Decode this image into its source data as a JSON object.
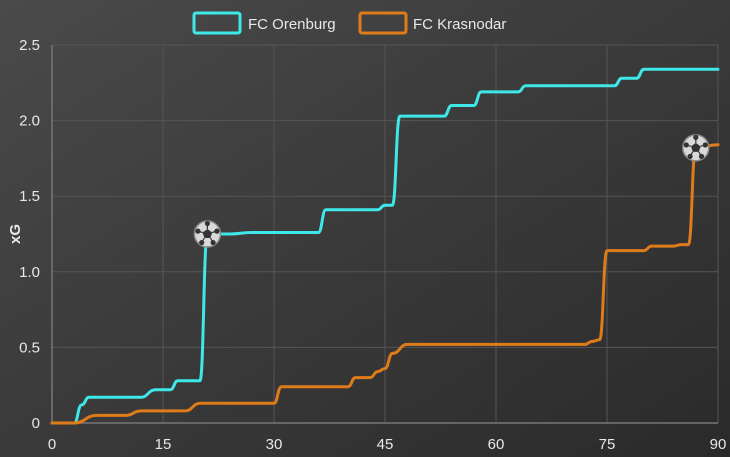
{
  "chart_data": {
    "type": "line",
    "title": "",
    "xlabel": "",
    "ylabel": "xG",
    "xlim": [
      0,
      90
    ],
    "ylim": [
      0,
      2.5
    ],
    "x_ticks": [
      "0",
      "15",
      "30",
      "45",
      "60",
      "75",
      "90"
    ],
    "y_ticks": [
      "0",
      "0.5",
      "1.0",
      "1.5",
      "2.0",
      "2.5"
    ],
    "grid": true,
    "legend_position": "top-center",
    "series": [
      {
        "name": "FC Orenburg",
        "color": "#3fe8e8",
        "points": [
          [
            0,
            0
          ],
          [
            3,
            0
          ],
          [
            4,
            0.12
          ],
          [
            5,
            0.17
          ],
          [
            12,
            0.17
          ],
          [
            14,
            0.22
          ],
          [
            16,
            0.22
          ],
          [
            17,
            0.28
          ],
          [
            19,
            0.28
          ],
          [
            20,
            0.28
          ],
          [
            21,
            1.25
          ],
          [
            24,
            1.25
          ],
          [
            27,
            1.26
          ],
          [
            34,
            1.26
          ],
          [
            36,
            1.26
          ],
          [
            37,
            1.41
          ],
          [
            44,
            1.41
          ],
          [
            45,
            1.44
          ],
          [
            46,
            1.44
          ],
          [
            47,
            2.03
          ],
          [
            53,
            2.03
          ],
          [
            54,
            2.1
          ],
          [
            57,
            2.1
          ],
          [
            58,
            2.19
          ],
          [
            63,
            2.19
          ],
          [
            64,
            2.23
          ],
          [
            76,
            2.23
          ],
          [
            77,
            2.28
          ],
          [
            79,
            2.28
          ],
          [
            80,
            2.34
          ],
          [
            90,
            2.34
          ]
        ],
        "goals": [
          [
            21,
            1.25
          ]
        ]
      },
      {
        "name": "FC Krasnodar",
        "color": "#e07b1a",
        "points": [
          [
            0,
            0
          ],
          [
            3,
            0
          ],
          [
            6,
            0.05
          ],
          [
            10,
            0.05
          ],
          [
            12,
            0.08
          ],
          [
            18,
            0.08
          ],
          [
            20,
            0.13
          ],
          [
            30,
            0.13
          ],
          [
            31,
            0.24
          ],
          [
            40,
            0.24
          ],
          [
            41,
            0.3
          ],
          [
            43,
            0.3
          ],
          [
            44,
            0.34
          ],
          [
            45,
            0.36
          ],
          [
            46,
            0.46
          ],
          [
            48,
            0.52
          ],
          [
            72,
            0.52
          ],
          [
            73,
            0.54
          ],
          [
            74,
            0.55
          ],
          [
            75,
            1.14
          ],
          [
            80,
            1.14
          ],
          [
            81,
            1.17
          ],
          [
            84,
            1.17
          ],
          [
            85,
            1.18
          ],
          [
            86,
            1.18
          ],
          [
            87,
            1.82
          ],
          [
            90,
            1.84
          ]
        ],
        "goals": [
          [
            87,
            1.82
          ]
        ]
      }
    ]
  },
  "goal_icon": "soccer-ball-icon"
}
